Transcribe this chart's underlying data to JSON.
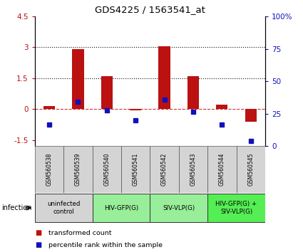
{
  "title": "GDS4225 / 1563541_at",
  "samples": [
    "GSM560538",
    "GSM560539",
    "GSM560540",
    "GSM560541",
    "GSM560542",
    "GSM560543",
    "GSM560544",
    "GSM560545"
  ],
  "transformed_count": [
    0.15,
    2.9,
    1.6,
    -0.07,
    3.05,
    1.6,
    0.2,
    -0.6
  ],
  "percentile_rank_scaled": [
    -0.75,
    0.35,
    -0.07,
    -0.55,
    0.45,
    -0.12,
    -0.75,
    -1.55
  ],
  "bar_color_red": "#bb1111",
  "bar_color_blue": "#1111bb",
  "ylim": [
    -1.8,
    4.5
  ],
  "y2lim": [
    0,
    100
  ],
  "yticks_left": [
    -1.5,
    0,
    1.5,
    3,
    4.5
  ],
  "yticks_right": [
    0,
    25,
    50,
    75,
    100
  ],
  "hlines": [
    0,
    1.5,
    3.0
  ],
  "hline_styles": [
    "--",
    ":",
    ":"
  ],
  "hline_colors": [
    "#cc3333",
    "#111111",
    "#111111"
  ],
  "groups": [
    {
      "label": "uninfected\ncontrol",
      "start": 0,
      "end": 1,
      "color": "#d4d4d4"
    },
    {
      "label": "HIV-GFP(G)",
      "start": 2,
      "end": 3,
      "color": "#99ee99"
    },
    {
      "label": "SIV-VLP(G)",
      "start": 4,
      "end": 5,
      "color": "#99ee99"
    },
    {
      "label": "HIV-GFP(G) +\nSIV-VLP(G)",
      "start": 6,
      "end": 7,
      "color": "#55ee55"
    }
  ],
  "infection_label": "infection",
  "legend_red": "transformed count",
  "legend_blue": "percentile rank within the sample",
  "background_color": "#ffffff",
  "sample_box_color": "#d4d4d4",
  "bar_width": 0.4
}
